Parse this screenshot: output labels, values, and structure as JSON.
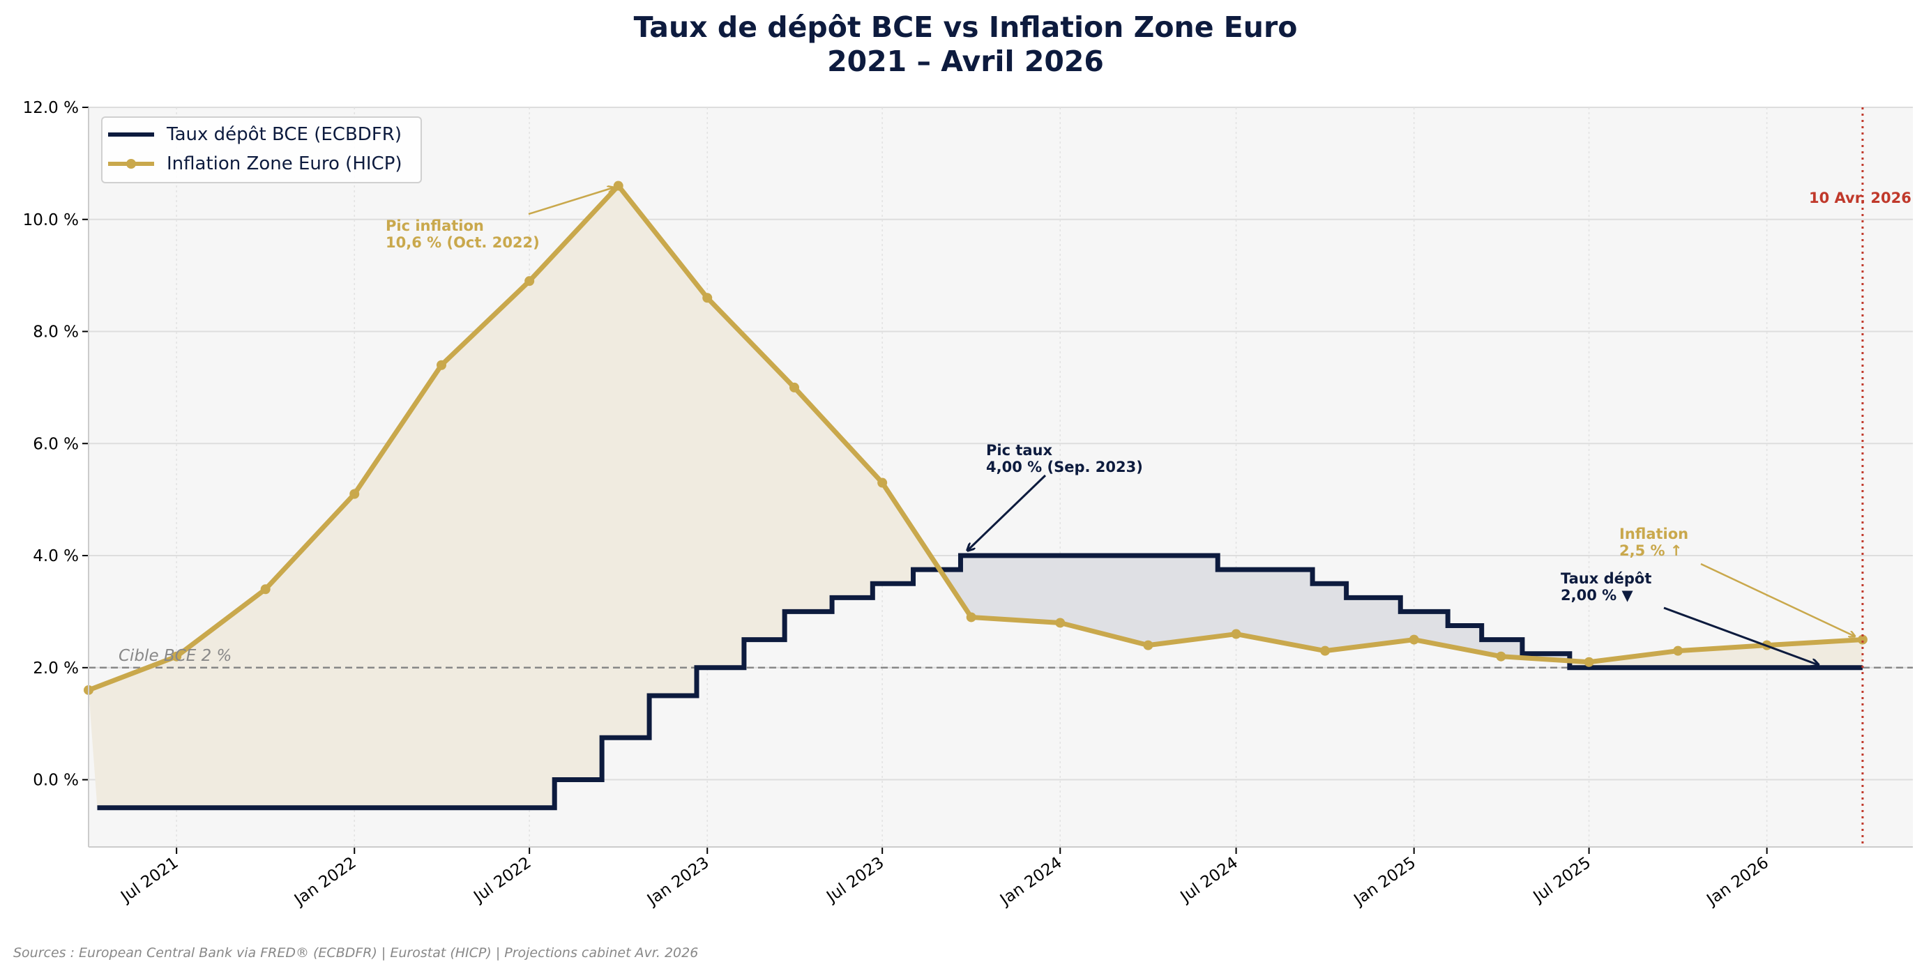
{
  "chart_data": {
    "type": "line",
    "title": "Taux de dépôt BCE vs Inflation Zone Euro",
    "subtitle": "2021 – Avril 2026",
    "xlabel": "",
    "ylabel": "",
    "xlim": [
      "2021-04-01",
      "2026-06-01"
    ],
    "ylim": [
      -1.2,
      12.0
    ],
    "grid": true,
    "legend_position": "top-left",
    "y_ticks": [
      0,
      2,
      4,
      6,
      8,
      10,
      12
    ],
    "y_tick_labels": [
      "0.0 %",
      "2.0 %",
      "4.0 %",
      "6.0 %",
      "8.0 %",
      "10.0 %",
      "12.0 %"
    ],
    "x_ticks": [
      "2021-07-01",
      "2022-01-01",
      "2022-07-01",
      "2023-01-01",
      "2023-07-01",
      "2024-01-01",
      "2024-07-01",
      "2025-01-01",
      "2025-07-01",
      "2026-01-01"
    ],
    "x_tick_labels": [
      "Jul 2021",
      "Jan 2022",
      "Jul 2022",
      "Jan 2023",
      "Jul 2023",
      "Jan 2024",
      "Jul 2024",
      "Jan 2025",
      "Jul 2025",
      "Jan 2026"
    ],
    "series": [
      {
        "name": "Taux dépôt BCE (ECBDFR)",
        "color": "#0d1b3e",
        "style": "step",
        "x": [
          "2021-04-10",
          "2022-07-27",
          "2022-09-14",
          "2022-11-02",
          "2022-12-21",
          "2023-02-08",
          "2023-03-22",
          "2023-05-10",
          "2023-06-21",
          "2023-08-02",
          "2023-09-20",
          "2024-06-12",
          "2024-09-18",
          "2024-10-23",
          "2024-12-18",
          "2025-02-05",
          "2025-03-12",
          "2025-04-23",
          "2025-06-11",
          "2026-04-10"
        ],
        "values": [
          -0.5,
          0.0,
          0.75,
          1.5,
          2.0,
          2.5,
          3.0,
          3.25,
          3.5,
          3.75,
          4.0,
          3.75,
          3.5,
          3.25,
          3.0,
          2.75,
          2.5,
          2.25,
          2.0,
          2.0
        ]
      },
      {
        "name": "Inflation Zone Euro (HICP)",
        "color": "#c9a84c",
        "style": "line-markers",
        "x": [
          "2021-04-01",
          "2021-07-01",
          "2021-10-01",
          "2022-01-01",
          "2022-04-01",
          "2022-07-01",
          "2022-10-01",
          "2023-01-01",
          "2023-04-01",
          "2023-07-01",
          "2023-10-01",
          "2024-01-01",
          "2024-04-01",
          "2024-07-01",
          "2024-10-01",
          "2025-01-01",
          "2025-04-01",
          "2025-07-01",
          "2025-10-01",
          "2026-01-01",
          "2026-04-10"
        ],
        "values": [
          1.6,
          2.2,
          3.4,
          5.1,
          7.4,
          8.9,
          10.6,
          8.6,
          7.0,
          5.3,
          2.9,
          2.8,
          2.4,
          2.6,
          2.3,
          2.5,
          2.2,
          2.1,
          2.3,
          2.4,
          2.5
        ]
      }
    ],
    "reference_line": {
      "value": 2.0,
      "label": "Cible BCE 2 %"
    },
    "today_line": {
      "date": "2026-04-10",
      "label": "10 Avr. 2026",
      "color": "#c0392b"
    },
    "annotations": {
      "inflation_peak": "Pic inflation\n10,6 % (Oct. 2022)",
      "rate_peak": "Pic taux\n4,00 % (Sep. 2023)",
      "inflation_now": "Inflation\n2,5 % ↑",
      "rate_now": "Taux dépôt\n2,00 % ▼"
    },
    "fill_colors": {
      "inflation_above": "#f0ebe0",
      "rate_above": "#dfe0e4"
    }
  },
  "source": "Sources : European Central Bank via FRED® (ECBDFR) | Eurostat (HICP) | Projections cabinet Avr. 2026"
}
